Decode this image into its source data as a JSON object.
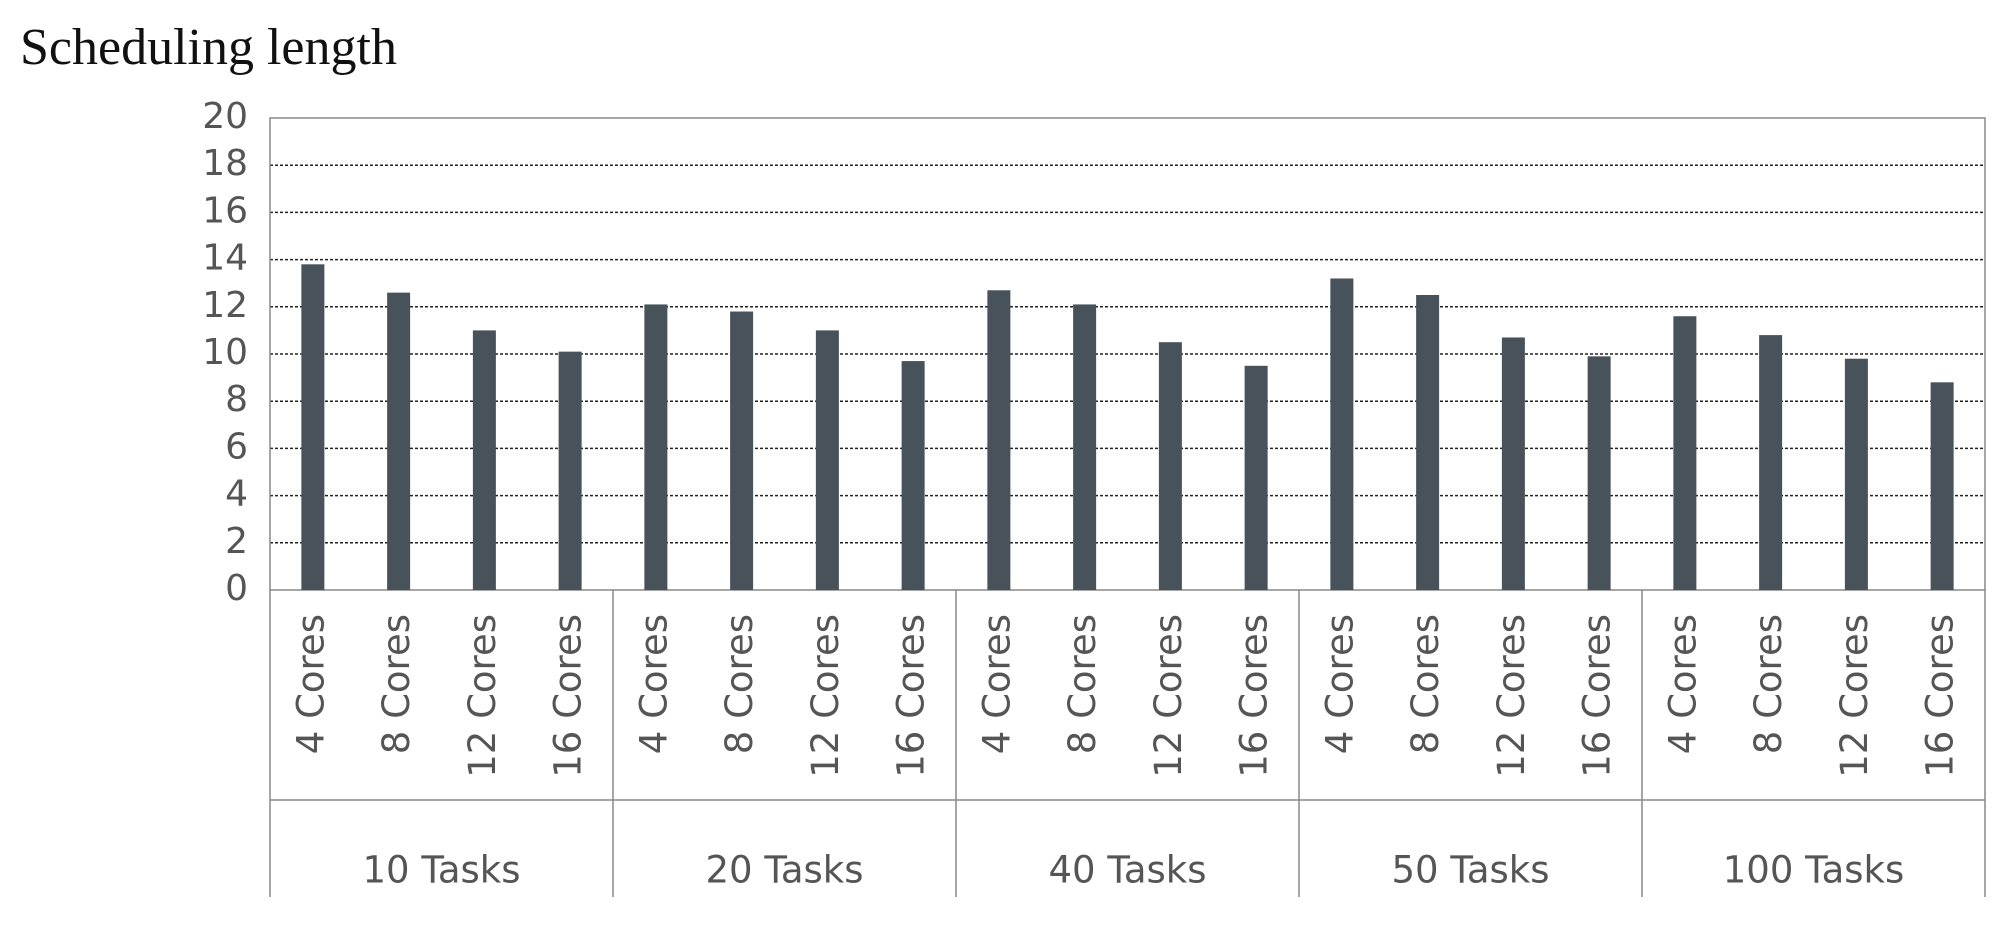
{
  "chart_data": {
    "type": "bar",
    "title": "Scheduling length",
    "color": "#47525a",
    "groups": [
      {
        "name": "10 Tasks",
        "categories": [
          "4 Cores",
          "8 Cores",
          "12 Cores",
          "16 Cores"
        ],
        "values": [
          13.8,
          12.6,
          11.0,
          10.1
        ]
      },
      {
        "name": "20 Tasks",
        "categories": [
          "4 Cores",
          "8 Cores",
          "12 Cores",
          "16 Cores"
        ],
        "values": [
          12.1,
          11.8,
          11.0,
          9.7
        ]
      },
      {
        "name": "40 Tasks",
        "categories": [
          "4 Cores",
          "8 Cores",
          "12 Cores",
          "16 Cores"
        ],
        "values": [
          12.7,
          12.1,
          10.5,
          9.5
        ]
      },
      {
        "name": "50 Tasks",
        "categories": [
          "4 Cores",
          "8 Cores",
          "12 Cores",
          "16 Cores"
        ],
        "values": [
          13.2,
          12.5,
          10.7,
          9.9
        ]
      },
      {
        "name": "100 Tasks",
        "categories": [
          "4 Cores",
          "8 Cores",
          "12 Cores",
          "16 Cores"
        ],
        "values": [
          11.6,
          10.8,
          9.8,
          8.8
        ]
      }
    ],
    "ylim": [
      0,
      20
    ],
    "yticks": [
      0,
      2,
      4,
      6,
      8,
      10,
      12,
      14,
      16,
      18,
      20
    ],
    "grid": true
  }
}
